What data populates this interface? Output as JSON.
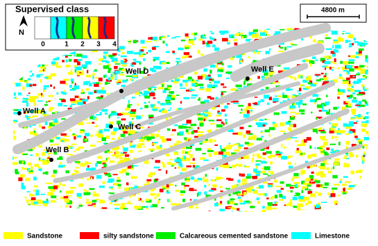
{
  "map": {
    "class_panel": {
      "title": "Supervised class",
      "north": "N",
      "classes": [
        "0",
        "1",
        "2",
        "3",
        "4"
      ]
    },
    "scale": "4800 m",
    "wells": [
      {
        "label": "Well A"
      },
      {
        "label": "Well B"
      },
      {
        "label": "Well C"
      },
      {
        "label": "Well D"
      },
      {
        "label": "Well E"
      }
    ],
    "legend": [
      {
        "label": "Sandstone",
        "color": "#ffff00"
      },
      {
        "label": "silty sandstone",
        "color": "#ff0000"
      },
      {
        "label": "Calcareous cemented sandstone",
        "color": "#00ee00"
      },
      {
        "label": "Limestone",
        "color": "#00ffff"
      }
    ]
  }
}
